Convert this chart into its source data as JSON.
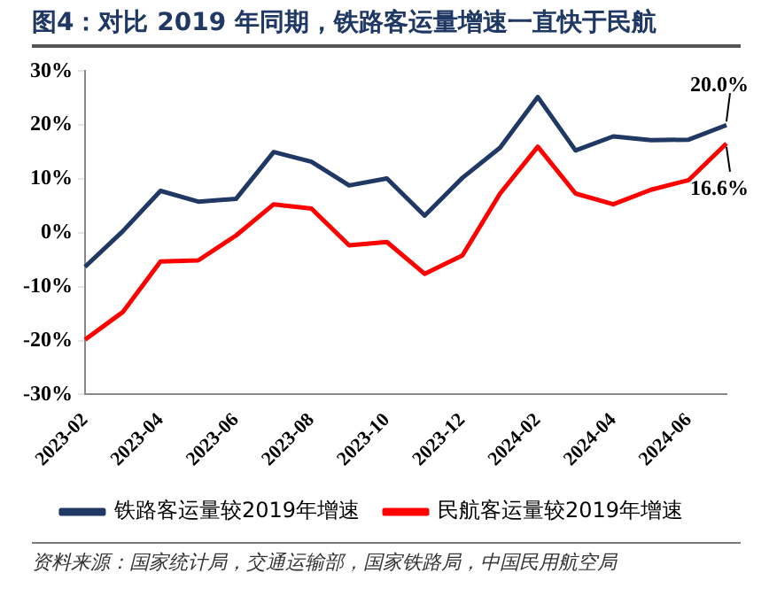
{
  "chart_data": {
    "type": "line",
    "title": "图4：对比 2019 年同期，铁路客运量增速一直快于民航",
    "categories": [
      "2023-02",
      null,
      "2023-04",
      null,
      "2023-06",
      null,
      "2023-08",
      null,
      "2023-10",
      null,
      "2023-12",
      null,
      "2024-02",
      null,
      "2024-04",
      null,
      "2024-06",
      null
    ],
    "series": [
      {
        "name": "铁路客运量较2019年增速",
        "color": "#1f3864",
        "values": [
          -6.3,
          0.3,
          7.8,
          5.8,
          6.3,
          15.0,
          13.2,
          8.8,
          10.1,
          3.2,
          10.2,
          15.8,
          25.2,
          15.3,
          17.9,
          17.2,
          17.3,
          20.0
        ],
        "value_labels": [
          null,
          null,
          null,
          null,
          null,
          null,
          null,
          null,
          null,
          null,
          null,
          null,
          null,
          null,
          null,
          null,
          null,
          "20.0%"
        ]
      },
      {
        "name": "民航客运量较2019年增速",
        "color": "#ff0000",
        "values": [
          -19.8,
          -14.7,
          -5.3,
          -5.1,
          -0.5,
          5.3,
          4.5,
          -2.3,
          -1.7,
          -7.6,
          -4.2,
          7.3,
          16.0,
          7.3,
          5.3,
          8.0,
          9.8,
          16.6
        ],
        "value_labels": [
          null,
          null,
          null,
          null,
          null,
          null,
          null,
          null,
          null,
          null,
          null,
          null,
          null,
          null,
          null,
          null,
          null,
          "16.6%"
        ]
      }
    ],
    "ylim": [
      -30,
      30
    ],
    "yticks": [
      {
        "value": -30,
        "label": "-30%"
      },
      {
        "value": -20,
        "label": "-20%"
      },
      {
        "value": -10,
        "label": "-10%"
      },
      {
        "value": 0,
        "label": "0%"
      },
      {
        "value": 10,
        "label": "10%"
      },
      {
        "value": 20,
        "label": "20%"
      },
      {
        "value": 30,
        "label": "30%"
      }
    ],
    "grid": false,
    "legend": "bottom",
    "marker": "none",
    "line_style": "solid",
    "annotations": [
      "资料来源：国家统计局，交通运输部，国家铁路局，中国民用航空局"
    ]
  }
}
